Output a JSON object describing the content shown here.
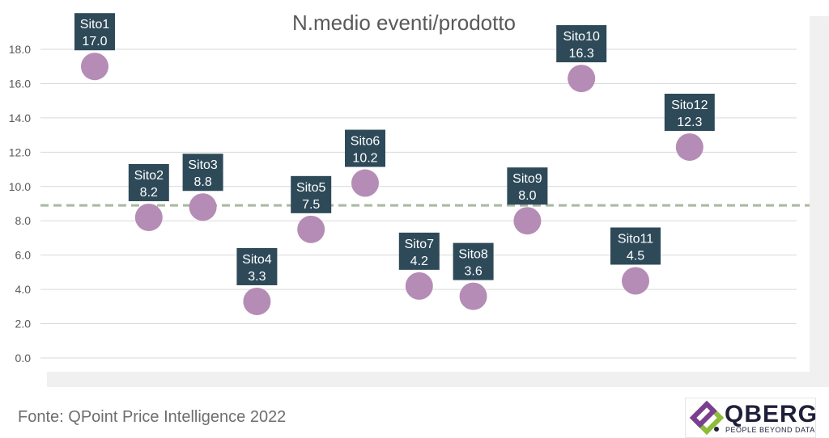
{
  "chart_data": {
    "type": "scatter",
    "title": "N.medio eventi/prodotto",
    "xlabel": "",
    "ylabel": "",
    "ylim": [
      0,
      18
    ],
    "y_ticks": [
      "0.0",
      "2.0",
      "4.0",
      "6.0",
      "8.0",
      "10.0",
      "12.0",
      "14.0",
      "16.0",
      "18.0"
    ],
    "grid": true,
    "reference_line": 8.9,
    "points": [
      {
        "label": "Sito1",
        "value": 17.0,
        "value_text": "17.0"
      },
      {
        "label": "Sito2",
        "value": 8.2,
        "value_text": "8.2"
      },
      {
        "label": "Sito3",
        "value": 8.8,
        "value_text": "8.8"
      },
      {
        "label": "Sito4",
        "value": 3.3,
        "value_text": "3.3"
      },
      {
        "label": "Sito5",
        "value": 7.5,
        "value_text": "7.5"
      },
      {
        "label": "Sito6",
        "value": 10.2,
        "value_text": "10.2"
      },
      {
        "label": "Sito7",
        "value": 4.2,
        "value_text": "4.2"
      },
      {
        "label": "Sito8",
        "value": 3.6,
        "value_text": "3.6"
      },
      {
        "label": "Sito9",
        "value": 8.0,
        "value_text": "8.0"
      },
      {
        "label": "Sito10",
        "value": 16.3,
        "value_text": "16.3"
      },
      {
        "label": "Sito11",
        "value": 4.5,
        "value_text": "4.5"
      },
      {
        "label": "Sito12",
        "value": 12.3,
        "value_text": "12.3"
      }
    ],
    "colors": {
      "point": "#b58cb6",
      "label_bg": "#2e4a59",
      "label_text": "#ffffff",
      "gridline": "#d9d9d9",
      "reference_line": "#a9b9a0",
      "title": "#595959",
      "tick_text": "#595959"
    }
  },
  "footer": {
    "source": "Fonte: QPoint Price Intelligence 2022"
  },
  "logo": {
    "name": "QBERG",
    "tagline": "PEOPLE BEYOND DATA"
  }
}
